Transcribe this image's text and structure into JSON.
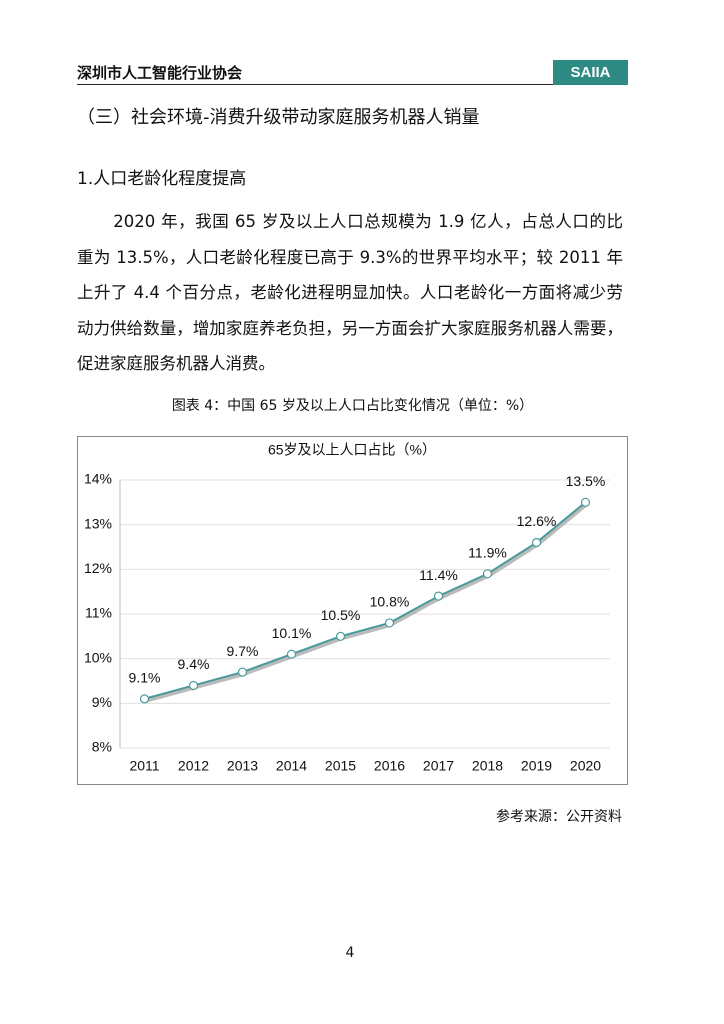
{
  "header": {
    "org": "深圳市人工智能行业协会",
    "badge": "SAIIA"
  },
  "section_title": "（三）社会环境-消费升级带动家庭服务机器人销量",
  "subsection_title": "1.人口老龄化程度提高",
  "paragraph": "2020 年，我国 65 岁及以上人口总规模为 1.9 亿人，占总人口的比重为 13.5%，人口老龄化程度已高于 9.3%的世界平均水平；较 2011 年上升了 4.4 个百分点，老龄化进程明显加快。人口老龄化一方面将减少劳动力供给数量，增加家庭养老负担，另一方面会扩大家庭服务机器人需要，促进家庭服务机器人消费。",
  "figure_caption": "图表 4：中国 65 岁及以上人口占比变化情况（单位：%）",
  "chart_data": {
    "type": "line",
    "title": "65岁及以上人口占比（%）",
    "categories": [
      "2011",
      "2012",
      "2013",
      "2014",
      "2015",
      "2016",
      "2017",
      "2018",
      "2019",
      "2020"
    ],
    "values": [
      9.1,
      9.4,
      9.7,
      10.1,
      10.5,
      10.8,
      11.4,
      11.9,
      12.6,
      13.5
    ],
    "value_labels": [
      "9.1%",
      "9.4%",
      "9.7%",
      "10.1%",
      "10.5%",
      "10.8%",
      "11.4%",
      "11.9%",
      "12.6%",
      "13.5%"
    ],
    "color": "#4a9a9a",
    "ylim": [
      8,
      14
    ],
    "yticks": [
      {
        "value": 8,
        "label": "8%"
      },
      {
        "value": 9,
        "label": "9%"
      },
      {
        "value": 10,
        "label": "10%"
      },
      {
        "value": 11,
        "label": "11%"
      },
      {
        "value": 12,
        "label": "12%"
      },
      {
        "value": 13,
        "label": "13%"
      },
      {
        "value": 14,
        "label": "14%"
      }
    ],
    "grid": true
  },
  "source": "参考来源：公开资料",
  "page_number": "4"
}
